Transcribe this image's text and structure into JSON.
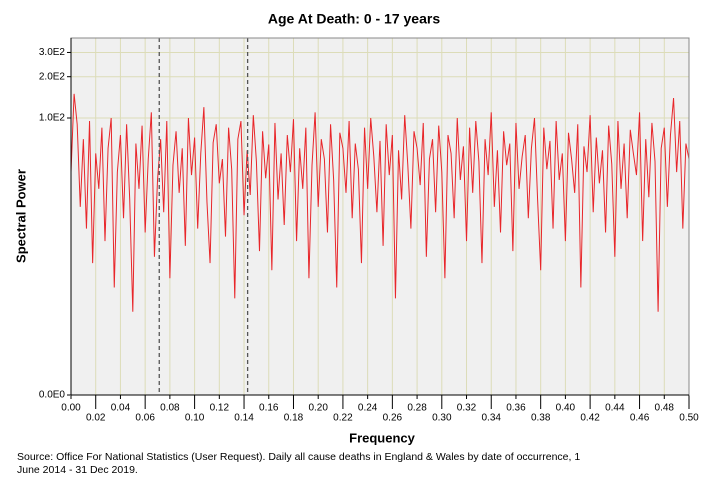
{
  "chart_data": {
    "type": "line",
    "title": "Age At Death: 0 - 17 years",
    "x_label": "Frequency",
    "y_label": "Spectral Power",
    "source": [
      "Source: Office For National Statistics (User Request). Daily all cause deaths in England & Wales by date of occurrence, 1",
      "June 2014 - 31 Dec 2019."
    ],
    "y_scale": "log1p",
    "grid": true,
    "xlim": [
      0,
      0.5
    ],
    "ylim": [
      0,
      382
    ],
    "xticks": [
      {
        "value": 0,
        "label": "0.00"
      },
      {
        "value": 0.02,
        "label": "0.02"
      },
      {
        "value": 0.04,
        "label": "0.04"
      },
      {
        "value": 0.06,
        "label": "0.06"
      },
      {
        "value": 0.08,
        "label": "0.08"
      },
      {
        "value": 0.1,
        "label": "0.10"
      },
      {
        "value": 0.12,
        "label": "0.12"
      },
      {
        "value": 0.14,
        "label": "0.14"
      },
      {
        "value": 0.16,
        "label": "0.16"
      },
      {
        "value": 0.18,
        "label": "0.18"
      },
      {
        "value": 0.2,
        "label": "0.20"
      },
      {
        "value": 0.22,
        "label": "0.22"
      },
      {
        "value": 0.24,
        "label": "0.24"
      },
      {
        "value": 0.26,
        "label": "0.26"
      },
      {
        "value": 0.28,
        "label": "0.28"
      },
      {
        "value": 0.3,
        "label": "0.30"
      },
      {
        "value": 0.32,
        "label": "0.32"
      },
      {
        "value": 0.34,
        "label": "0.34"
      },
      {
        "value": 0.36,
        "label": "0.36"
      },
      {
        "value": 0.38,
        "label": "0.38"
      },
      {
        "value": 0.4,
        "label": "0.40"
      },
      {
        "value": 0.42,
        "label": "0.42"
      },
      {
        "value": 0.44,
        "label": "0.44"
      },
      {
        "value": 0.46,
        "label": "0.46"
      },
      {
        "value": 0.48,
        "label": "0.48"
      },
      {
        "value": 0.5,
        "label": "0.50"
      }
    ],
    "yticks": [
      {
        "value": 0,
        "label": "0.0E0"
      },
      {
        "value": 100,
        "label": "1.0E2"
      },
      {
        "value": 200,
        "label": "2.0E2"
      },
      {
        "value": 300,
        "label": "3.0E2"
      }
    ],
    "vlines": [
      0.0714,
      0.1429
    ],
    "x": [
      0,
      0.0025,
      0.005,
      0.0075,
      0.01,
      0.0125,
      0.015,
      0.0175,
      0.02,
      0.0225,
      0.025,
      0.0275,
      0.03,
      0.0325,
      0.035,
      0.0375,
      0.04,
      0.0425,
      0.045,
      0.0475,
      0.05,
      0.0525,
      0.055,
      0.0575,
      0.06,
      0.0625,
      0.065,
      0.0675,
      0.07,
      0.0725,
      0.075,
      0.0775,
      0.08,
      0.0825,
      0.085,
      0.0875,
      0.09,
      0.0925,
      0.095,
      0.0975,
      0.1,
      0.1025,
      0.105,
      0.1075,
      0.11,
      0.1125,
      0.115,
      0.1175,
      0.12,
      0.1225,
      0.125,
      0.1275,
      0.13,
      0.1325,
      0.135,
      0.1375,
      0.14,
      0.1425,
      0.145,
      0.1475,
      0.15,
      0.1525,
      0.155,
      0.1575,
      0.16,
      0.1625,
      0.165,
      0.1675,
      0.17,
      0.1725,
      0.175,
      0.1775,
      0.18,
      0.1825,
      0.185,
      0.1875,
      0.19,
      0.1925,
      0.195,
      0.1975,
      0.2,
      0.2025,
      0.205,
      0.2075,
      0.21,
      0.2125,
      0.215,
      0.2175,
      0.22,
      0.2225,
      0.225,
      0.2275,
      0.23,
      0.2325,
      0.235,
      0.2375,
      0.24,
      0.2425,
      0.245,
      0.2475,
      0.25,
      0.2525,
      0.255,
      0.2575,
      0.26,
      0.2625,
      0.265,
      0.2675,
      0.27,
      0.2725,
      0.275,
      0.2775,
      0.28,
      0.2825,
      0.285,
      0.2875,
      0.29,
      0.2925,
      0.295,
      0.2975,
      0.3,
      0.3025,
      0.305,
      0.3075,
      0.31,
      0.3125,
      0.315,
      0.3175,
      0.32,
      0.3225,
      0.325,
      0.3275,
      0.33,
      0.3325,
      0.335,
      0.3375,
      0.34,
      0.3425,
      0.345,
      0.3475,
      0.35,
      0.3525,
      0.355,
      0.3575,
      0.36,
      0.3625,
      0.365,
      0.3675,
      0.37,
      0.3725,
      0.375,
      0.3775,
      0.38,
      0.3825,
      0.385,
      0.3875,
      0.39,
      0.3925,
      0.395,
      0.3975,
      0.4,
      0.4025,
      0.405,
      0.4075,
      0.41,
      0.4125,
      0.415,
      0.4175,
      0.42,
      0.4225,
      0.425,
      0.4275,
      0.43,
      0.4325,
      0.435,
      0.4375,
      0.44,
      0.4425,
      0.445,
      0.4475,
      0.45,
      0.4525,
      0.455,
      0.4575,
      0.46,
      0.4625,
      0.465,
      0.4675,
      0.47,
      0.4725,
      0.475,
      0.4775,
      0.48,
      0.4825,
      0.485,
      0.4875,
      0.49,
      0.4925,
      0.495,
      0.4975,
      0.5
    ],
    "series": [
      {
        "color": "#e8262a",
        "values": [
          40,
          150,
          90,
          22,
          70,
          15,
          95,
          8,
          55,
          30,
          85,
          12,
          60,
          100,
          5,
          40,
          75,
          18,
          90,
          25,
          3,
          65,
          30,
          88,
          14,
          50,
          110,
          9,
          35,
          70,
          20,
          95,
          6,
          45,
          80,
          28,
          60,
          11,
          100,
          38,
          72,
          15,
          55,
          120,
          24,
          8,
          66,
          90,
          33,
          50,
          13,
          85,
          42,
          4,
          70,
          95,
          19,
          58,
          27,
          105,
          48,
          10,
          80,
          36,
          64,
          7,
          92,
          25,
          55,
          16,
          75,
          40,
          98,
          12,
          60,
          30,
          85,
          6,
          45,
          110,
          22,
          70,
          50,
          14,
          90,
          35,
          5,
          78,
          60,
          28,
          95,
          18,
          65,
          42,
          8,
          85,
          30,
          100,
          52,
          20,
          68,
          11,
          90,
          38,
          75,
          4,
          58,
          25,
          105,
          45,
          15,
          80,
          60,
          32,
          92,
          9,
          50,
          70,
          20,
          88,
          40,
          6,
          75,
          55,
          18,
          100,
          35,
          62,
          12,
          85,
          28,
          95,
          48,
          8,
          70,
          38,
          110,
          22,
          58,
          14,
          80,
          45,
          65,
          10,
          92,
          30,
          52,
          75,
          18,
          60,
          100,
          25,
          7,
          85,
          42,
          68,
          15,
          95,
          35,
          55,
          12,
          78,
          50,
          28,
          90,
          5,
          62,
          40,
          105,
          20,
          72,
          33,
          58,
          14,
          88,
          46,
          9,
          95,
          30,
          65,
          18,
          82,
          55,
          38,
          110,
          12,
          70,
          26,
          92,
          48,
          3,
          60,
          85,
          22,
          75,
          140,
          40,
          95,
          15,
          65,
          50
        ]
      }
    ]
  }
}
